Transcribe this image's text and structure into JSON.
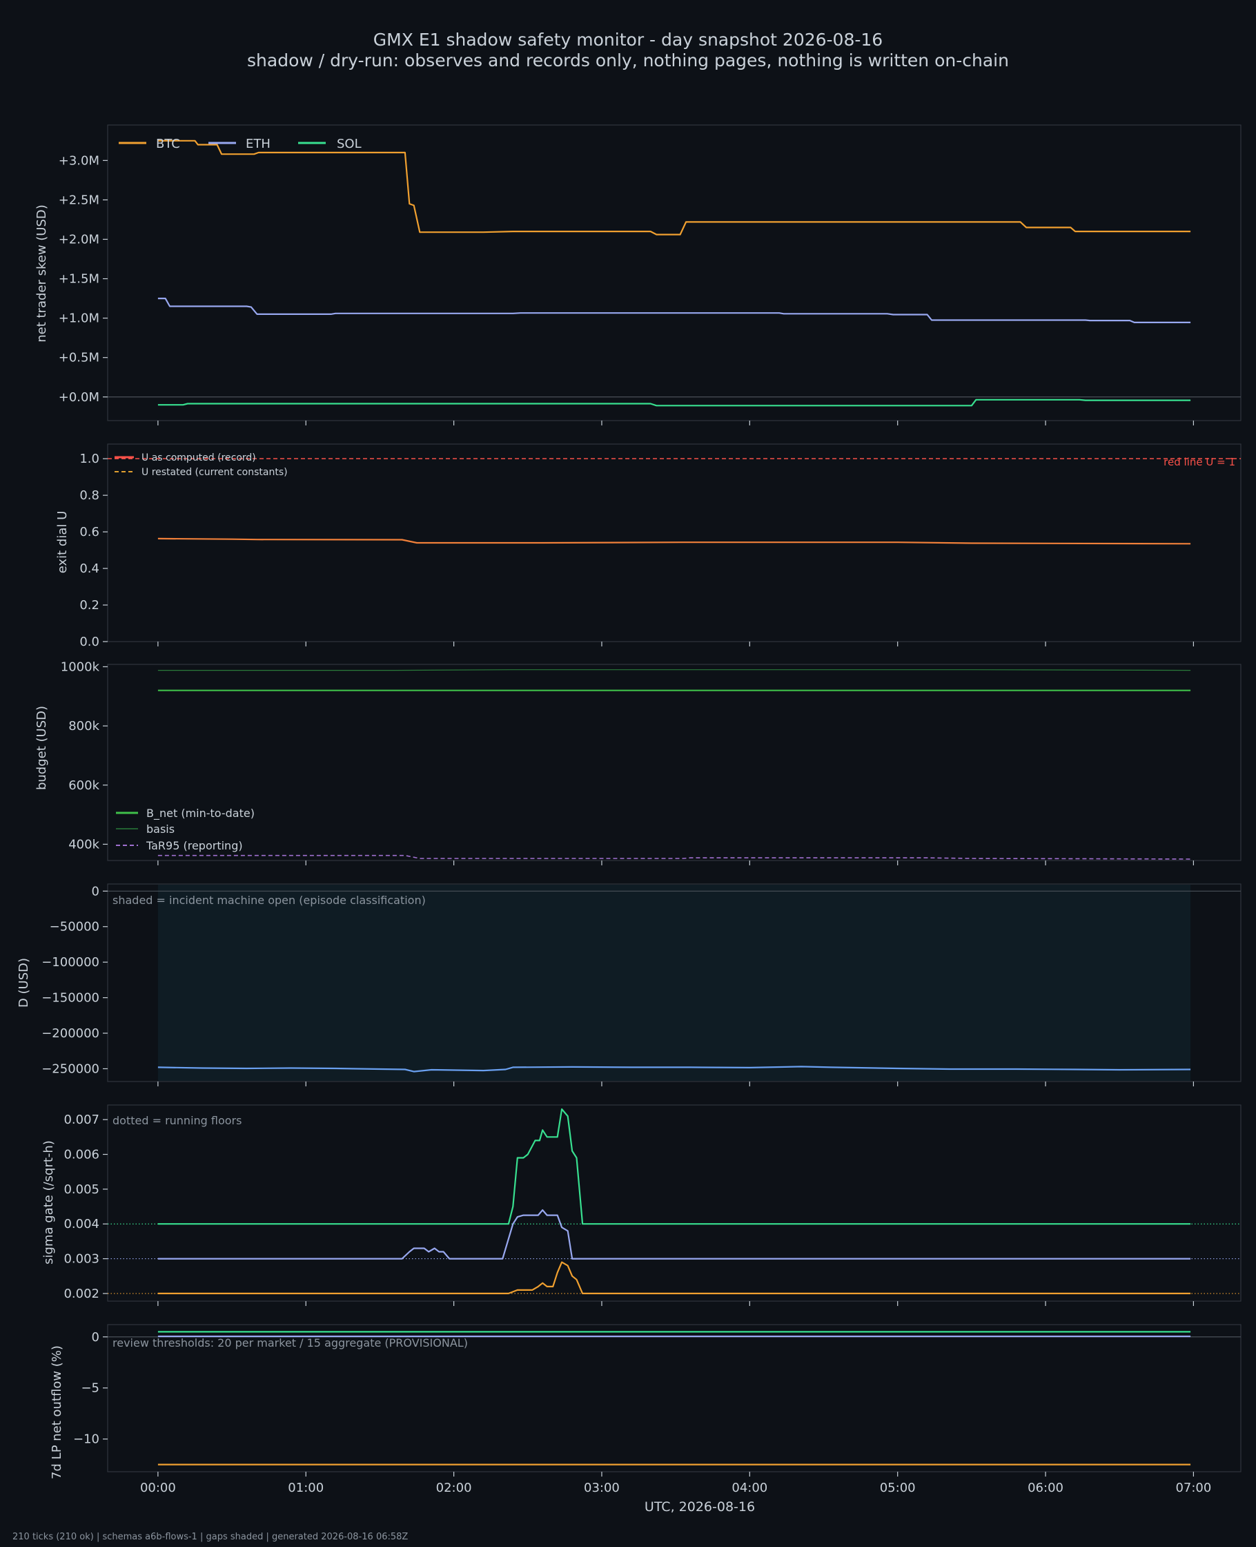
{
  "page": {
    "title": "GMX E1 shadow safety monitor - day snapshot 2026-08-16",
    "subtitle": "shadow / dry-run: observes and records only, nothing pages, nothing is written on-chain",
    "footer": "210 ticks (210 ok) | schemas a6b-flows-1 | gaps shaded | generated 2026-08-16 06:58Z",
    "xlabel": "UTC, 2026-08-16"
  },
  "colors": {
    "background": "#0d1117",
    "panel_border": "#30363d",
    "btc": "#f0a030",
    "eth": "#98a8f0",
    "sol": "#38e090",
    "u_record": "#f85149",
    "u_restated": "#e0a030",
    "u_line": "#f0803a",
    "bnet": "#3fc04a",
    "basis": "#2a7a3a",
    "tar95": "#a070d0",
    "d_line": "#6aa0f0",
    "shade": "#0f1c24"
  },
  "chart_data": [
    {
      "id": "skew",
      "type": "line",
      "ylabel": "net trader skew (USD)",
      "ylim": [
        -300000,
        3450000
      ],
      "yticks": [
        0,
        500000,
        1000000,
        1500000,
        2000000,
        2500000,
        3000000
      ],
      "yticklabels": [
        "+0.0M",
        "+0.5M",
        "+1.0M",
        "+1.5M",
        "+2.0M",
        "+2.5M",
        "+3.0M"
      ],
      "legend": "top-left",
      "zero_line": true,
      "series": [
        {
          "name": "BTC",
          "color_key": "btc",
          "points": [
            [
              0,
              3250000
            ],
            [
              0.25,
              3250000
            ],
            [
              0.27,
              3200000
            ],
            [
              0.4,
              3200000
            ],
            [
              0.43,
              3080000
            ],
            [
              0.65,
              3080000
            ],
            [
              0.68,
              3100000
            ],
            [
              1.38,
              3100000
            ],
            [
              1.4,
              3100000
            ],
            [
              1.67,
              3100000
            ],
            [
              1.7,
              2450000
            ],
            [
              1.73,
              2430000
            ],
            [
              1.77,
              2090000
            ],
            [
              2.2,
              2090000
            ],
            [
              2.4,
              2100000
            ],
            [
              3.33,
              2100000
            ],
            [
              3.37,
              2060000
            ],
            [
              3.53,
              2060000
            ],
            [
              3.57,
              2220000
            ],
            [
              5.83,
              2220000
            ],
            [
              5.87,
              2150000
            ],
            [
              6.17,
              2150000
            ],
            [
              6.2,
              2100000
            ],
            [
              6.98,
              2100000
            ]
          ]
        },
        {
          "name": "ETH",
          "color_key": "eth",
          "points": [
            [
              0,
              1250000
            ],
            [
              0.05,
              1250000
            ],
            [
              0.08,
              1150000
            ],
            [
              0.6,
              1150000
            ],
            [
              0.63,
              1140000
            ],
            [
              0.67,
              1050000
            ],
            [
              1.17,
              1050000
            ],
            [
              1.2,
              1060000
            ],
            [
              2.4,
              1060000
            ],
            [
              2.45,
              1065000
            ],
            [
              4.2,
              1065000
            ],
            [
              4.23,
              1055000
            ],
            [
              4.93,
              1055000
            ],
            [
              4.97,
              1045000
            ],
            [
              5.2,
              1045000
            ],
            [
              5.23,
              975000
            ],
            [
              6.27,
              975000
            ],
            [
              6.3,
              970000
            ],
            [
              6.57,
              970000
            ],
            [
              6.6,
              945000
            ],
            [
              6.98,
              945000
            ]
          ]
        },
        {
          "name": "SOL",
          "color_key": "sol",
          "points": [
            [
              0,
              -100000
            ],
            [
              0.17,
              -100000
            ],
            [
              0.2,
              -85000
            ],
            [
              3.33,
              -85000
            ],
            [
              3.37,
              -110000
            ],
            [
              5.5,
              -110000
            ],
            [
              5.53,
              -35000
            ],
            [
              6.23,
              -35000
            ],
            [
              6.27,
              -42000
            ],
            [
              6.98,
              -42000
            ]
          ]
        }
      ]
    },
    {
      "id": "exit_dial",
      "type": "line",
      "ylabel": "exit dial U",
      "ylim": [
        0,
        1.08
      ],
      "yticks": [
        0,
        0.2,
        0.4,
        0.6,
        0.8,
        1.0
      ],
      "yticklabels": [
        "0.0",
        "0.2",
        "0.4",
        "0.6",
        "0.8",
        "1.0"
      ],
      "legend": "top-left",
      "red_line": {
        "value": 1.0,
        "label": "red line U = 1"
      },
      "series": [
        {
          "name": "U as computed (record)",
          "color_key": "u_line",
          "points": [
            [
              0,
              0.563
            ],
            [
              0.5,
              0.56
            ],
            [
              0.67,
              0.558
            ],
            [
              1.65,
              0.557
            ],
            [
              1.75,
              0.54
            ],
            [
              2.6,
              0.54
            ],
            [
              3.55,
              0.543
            ],
            [
              5.0,
              0.543
            ],
            [
              5.5,
              0.538
            ],
            [
              6.98,
              0.535
            ]
          ]
        },
        {
          "name": "U restated (current constants)",
          "color_key": "u_restated",
          "points": []
        }
      ]
    },
    {
      "id": "budget",
      "type": "line",
      "ylabel": "budget (USD)",
      "ylim": [
        345000,
        1008000
      ],
      "yticks": [
        400000,
        600000,
        800000,
        1000000
      ],
      "yticklabels": [
        "400k",
        "600k",
        "800k",
        "1000k"
      ],
      "legend": "bottom-left",
      "series": [
        {
          "name": "B_net (min-to-date)",
          "color_key": "bnet",
          "points": [
            [
              0,
              920000
            ],
            [
              6.98,
              920000
            ]
          ]
        },
        {
          "name": "basis",
          "color_key": "basis",
          "points": [
            [
              0,
              988000
            ],
            [
              1.6,
              988000
            ],
            [
              2.4,
              990000
            ],
            [
              5.5,
              990000
            ],
            [
              6.98,
              988000
            ]
          ]
        },
        {
          "name": "TaR95 (reporting)",
          "color_key": "tar95",
          "points": [
            [
              0,
              362000
            ],
            [
              1.67,
              362000
            ],
            [
              1.77,
              352000
            ],
            [
              3.55,
              352000
            ],
            [
              3.6,
              354000
            ],
            [
              5.2,
              354000
            ],
            [
              5.5,
              352000
            ],
            [
              6.98,
              350000
            ]
          ]
        }
      ]
    },
    {
      "id": "drawdown",
      "type": "line",
      "ylabel": "D (USD)",
      "ylim": [
        -268000,
        10000
      ],
      "yticks": [
        0,
        -50000,
        -100000,
        -150000,
        -200000,
        -250000
      ],
      "yticklabels": [
        "0",
        "−50000",
        "−100000",
        "−150000",
        "−200000",
        "−250000"
      ],
      "note": "shaded = incident machine open (episode classification)",
      "zero_line": true,
      "shaded": [
        0,
        6.98
      ],
      "series": [
        {
          "name": "D",
          "color_key": "d_line",
          "points": [
            [
              0,
              -248000
            ],
            [
              0.3,
              -249000
            ],
            [
              0.6,
              -249500
            ],
            [
              0.9,
              -249000
            ],
            [
              1.2,
              -249500
            ],
            [
              1.5,
              -250500
            ],
            [
              1.67,
              -251000
            ],
            [
              1.73,
              -254000
            ],
            [
              1.85,
              -251500
            ],
            [
              2.2,
              -252500
            ],
            [
              2.35,
              -251000
            ],
            [
              2.4,
              -248000
            ],
            [
              2.8,
              -247500
            ],
            [
              3.2,
              -248000
            ],
            [
              3.6,
              -248000
            ],
            [
              4.0,
              -248500
            ],
            [
              4.35,
              -247000
            ],
            [
              4.55,
              -248000
            ],
            [
              5.0,
              -249500
            ],
            [
              5.35,
              -250500
            ],
            [
              5.8,
              -250500
            ],
            [
              6.2,
              -251000
            ],
            [
              6.5,
              -251500
            ],
            [
              6.98,
              -251000
            ]
          ]
        }
      ]
    },
    {
      "id": "sigma_gate",
      "type": "line",
      "ylabel": "sigma gate (/sqrt-h)",
      "ylim": [
        0.00178,
        0.00742
      ],
      "yticks": [
        0.002,
        0.003,
        0.004,
        0.005,
        0.006,
        0.007
      ],
      "yticklabels": [
        "0.002",
        "0.003",
        "0.004",
        "0.005",
        "0.006",
        "0.007"
      ],
      "note": "dotted = running floors",
      "floors": [
        {
          "value": 0.004,
          "color_key": "sol"
        },
        {
          "value": 0.003,
          "color_key": "eth"
        },
        {
          "value": 0.002,
          "color_key": "btc"
        }
      ],
      "series": [
        {
          "name": "SOL",
          "color_key": "sol",
          "points": [
            [
              0,
              0.004
            ],
            [
              2.37,
              0.004
            ],
            [
              2.4,
              0.0045
            ],
            [
              2.43,
              0.0059
            ],
            [
              2.47,
              0.0059
            ],
            [
              2.5,
              0.006
            ],
            [
              2.55,
              0.0064
            ],
            [
              2.58,
              0.0064
            ],
            [
              2.6,
              0.0067
            ],
            [
              2.63,
              0.0065
            ],
            [
              2.7,
              0.0065
            ],
            [
              2.73,
              0.0073
            ],
            [
              2.77,
              0.0071
            ],
            [
              2.8,
              0.0061
            ],
            [
              2.83,
              0.0059
            ],
            [
              2.87,
              0.004
            ],
            [
              6.98,
              0.004
            ]
          ]
        },
        {
          "name": "ETH",
          "color_key": "eth",
          "points": [
            [
              0,
              0.003
            ],
            [
              1.65,
              0.003
            ],
            [
              1.7,
              0.0032
            ],
            [
              1.73,
              0.0033
            ],
            [
              1.8,
              0.0033
            ],
            [
              1.83,
              0.0032
            ],
            [
              1.87,
              0.0033
            ],
            [
              1.9,
              0.0032
            ],
            [
              1.93,
              0.0032
            ],
            [
              1.97,
              0.003
            ],
            [
              2.33,
              0.003
            ],
            [
              2.4,
              0.004
            ],
            [
              2.43,
              0.0042
            ],
            [
              2.47,
              0.00425
            ],
            [
              2.57,
              0.00425
            ],
            [
              2.6,
              0.0044
            ],
            [
              2.63,
              0.00425
            ],
            [
              2.7,
              0.00425
            ],
            [
              2.73,
              0.0039
            ],
            [
              2.77,
              0.0038
            ],
            [
              2.8,
              0.003
            ],
            [
              6.98,
              0.003
            ]
          ]
        },
        {
          "name": "BTC",
          "color_key": "btc",
          "points": [
            [
              0,
              0.002
            ],
            [
              2.37,
              0.002
            ],
            [
              2.43,
              0.0021
            ],
            [
              2.53,
              0.0021
            ],
            [
              2.57,
              0.0022
            ],
            [
              2.6,
              0.0023
            ],
            [
              2.63,
              0.0022
            ],
            [
              2.67,
              0.0022
            ],
            [
              2.7,
              0.0026
            ],
            [
              2.73,
              0.0029
            ],
            [
              2.77,
              0.0028
            ],
            [
              2.8,
              0.0025
            ],
            [
              2.83,
              0.0024
            ],
            [
              2.87,
              0.002
            ],
            [
              6.98,
              0.002
            ]
          ]
        }
      ]
    },
    {
      "id": "lp_outflow",
      "type": "line",
      "ylabel": "7d LP net outflow (%)",
      "ylim": [
        -13.2,
        1.2
      ],
      "yticks": [
        0,
        -5,
        -10
      ],
      "yticklabels": [
        "0",
        "−5",
        "−10"
      ],
      "note": "review thresholds: 20 per market / 15 aggregate (PROVISIONAL)",
      "zero_line": true,
      "series": [
        {
          "name": "SOL",
          "color_key": "sol",
          "points": [
            [
              0,
              0.5
            ],
            [
              6.98,
              0.5
            ]
          ]
        },
        {
          "name": "ETH",
          "color_key": "eth",
          "points": [
            [
              0,
              0.05
            ],
            [
              6.98,
              0.05
            ]
          ]
        },
        {
          "name": "BTC",
          "color_key": "btc",
          "points": [
            [
              0,
              -12.5
            ],
            [
              6.98,
              -12.5
            ]
          ]
        }
      ]
    }
  ],
  "xaxis": {
    "xlim": [
      -0.34,
      7.32
    ],
    "ticks": [
      0,
      1,
      2,
      3,
      4,
      5,
      6,
      7
    ],
    "ticklabels": [
      "00:00",
      "01:00",
      "02:00",
      "03:00",
      "04:00",
      "05:00",
      "06:00",
      "07:00"
    ]
  }
}
